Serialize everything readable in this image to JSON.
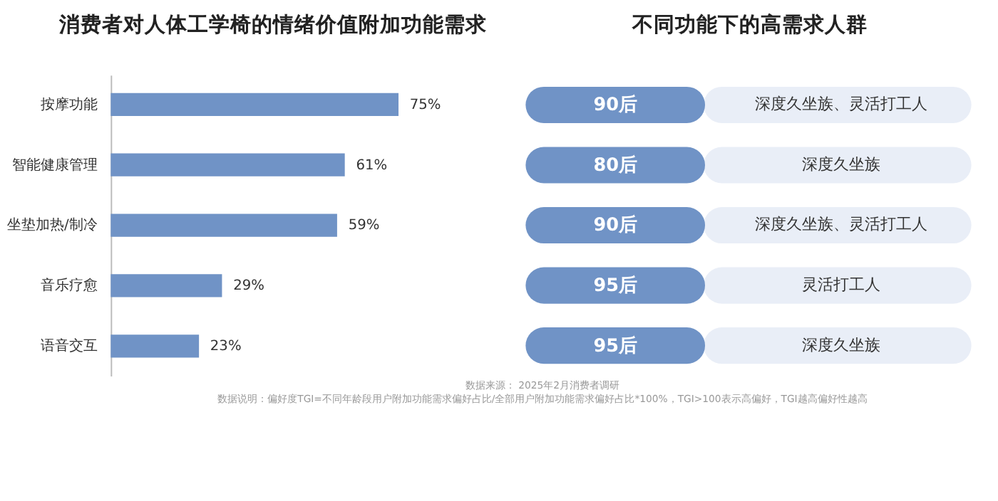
{
  "chart_data": [
    {
      "type": "bar",
      "orientation": "horizontal",
      "title": "消费者对人体工学椅的情绪价值附加功能需求",
      "categories": [
        "按摩功能",
        "智能健康管理",
        "坐垫加热/制冷",
        "音乐疗愈",
        "语音交互"
      ],
      "values": [
        75,
        61,
        59,
        29,
        23
      ],
      "value_labels": [
        "75%",
        "61%",
        "59%",
        "29%",
        "23%"
      ],
      "color": "#7093c6",
      "grid": false,
      "annotations": [
        "数据来源：  2025年2月消费者调研",
        "数据说明：偏好度TGI=不同年龄段用户附加功能需求偏好占比/全部用户附加功能需求偏好占比*100%，TGI>100表示高偏好，TGI越高偏好性越高"
      ]
    },
    {
      "type": "other",
      "title": "不同功能下的高需求人群",
      "categories": [
        "90后",
        "80后",
        "90后",
        "95后",
        "95后"
      ],
      "color": "#7093c6",
      "annotations": [
        "深度久坐族、灵活打工人",
        "深度久坐族",
        "深度久坐族、灵活打工人",
        "灵活打工人",
        "深度久坐族"
      ]
    }
  ]
}
